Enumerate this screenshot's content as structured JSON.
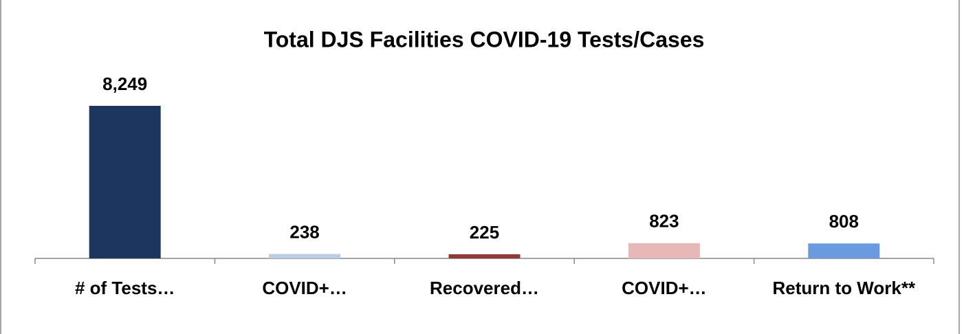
{
  "chart_data": {
    "type": "bar",
    "title": "Total DJS Facilities COVID-19 Tests/Cases",
    "categories": [
      "# of Tests…",
      "COVID+…",
      "Recovered…",
      "COVID+…",
      "Return to Work**"
    ],
    "values": [
      8249,
      238,
      225,
      823,
      808
    ],
    "value_labels": [
      "8,249",
      "238",
      "225",
      "823",
      "808"
    ],
    "colors": [
      "#1b375f",
      "#b9cde5",
      "#953735",
      "#e6b9b8",
      "#6a9be0"
    ]
  }
}
